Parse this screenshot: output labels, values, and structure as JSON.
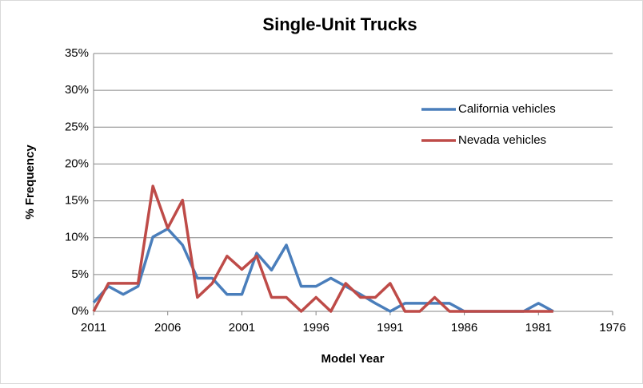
{
  "chart_data": {
    "type": "line",
    "title": "Single-Unit Trucks",
    "x_label": "Model Year",
    "y_label": "% Frequency",
    "x": [
      2011,
      2010,
      2009,
      2008,
      2007,
      2006,
      2005,
      2004,
      2003,
      2002,
      2001,
      2000,
      1999,
      1998,
      1997,
      1996,
      1995,
      1994,
      1993,
      1992,
      1991,
      1990,
      1989,
      1988,
      1987,
      1986,
      1985,
      1984,
      1983,
      1982,
      1981,
      1980
    ],
    "series": [
      {
        "name": "California vehicles",
        "color": "#4a7ebb",
        "values": [
          1.2,
          3.4,
          2.3,
          3.4,
          10.1,
          11.2,
          9.0,
          4.5,
          4.5,
          2.3,
          2.3,
          7.9,
          5.6,
          9.0,
          3.4,
          3.4,
          4.5,
          3.4,
          2.3,
          1.1,
          0,
          1.1,
          1.1,
          1.1,
          1.1,
          0,
          0,
          0,
          0,
          0,
          1.1,
          0
        ]
      },
      {
        "name": "Nevada vehicles",
        "color": "#be4b48",
        "values": [
          0,
          3.8,
          3.8,
          3.8,
          17.0,
          11.3,
          15.1,
          1.9,
          3.8,
          7.5,
          5.7,
          7.5,
          1.9,
          1.9,
          0,
          1.9,
          0,
          3.8,
          1.9,
          1.9,
          3.8,
          0,
          0,
          1.9,
          0,
          0,
          0,
          0,
          0,
          0,
          0,
          0
        ]
      }
    ],
    "xlim": [
      2011,
      1976
    ],
    "xticks": [
      2011,
      2006,
      2001,
      1996,
      1991,
      1986,
      1981,
      1976
    ],
    "ylim": [
      0,
      35
    ],
    "yticks": [
      {
        "value": 0,
        "label": "0%"
      },
      {
        "value": 5,
        "label": "5%"
      },
      {
        "value": 10,
        "label": "10%"
      },
      {
        "value": 15,
        "label": "15%"
      },
      {
        "value": 20,
        "label": "20%"
      },
      {
        "value": 25,
        "label": "25%"
      },
      {
        "value": 30,
        "label": "30%"
      },
      {
        "value": 35,
        "label": "35%"
      }
    ],
    "grid": true,
    "legend": "upper right"
  }
}
